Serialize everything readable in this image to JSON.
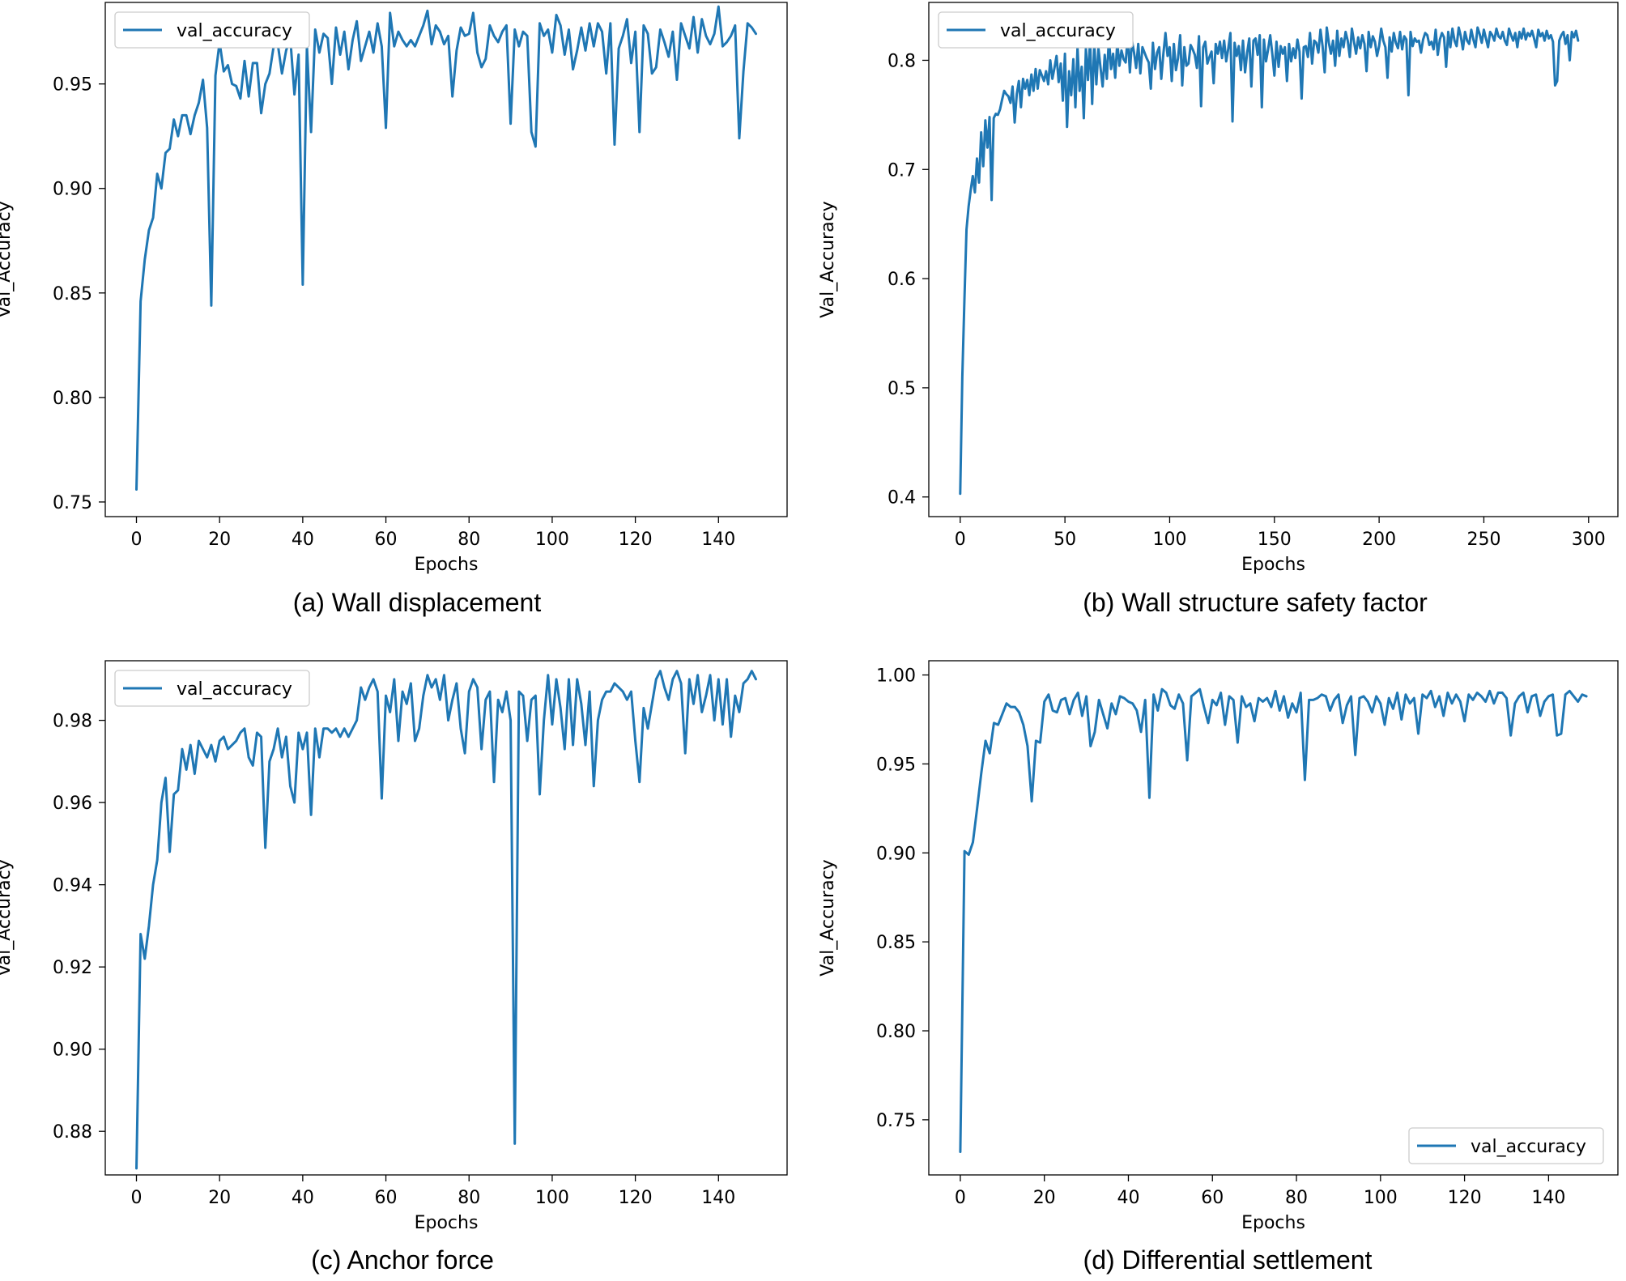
{
  "style": {
    "line_color": "#1f77b4",
    "frame_color": "#000000",
    "background": "#ffffff"
  },
  "chart_data": [
    {
      "type": "line",
      "caption": "(a) Wall displacement",
      "xlabel": "Epochs",
      "ylabel": "Val_Accuracy",
      "xlim": [
        -7.5,
        156.5
      ],
      "ylim": [
        0.743,
        0.989
      ],
      "xticks": [
        0,
        20,
        40,
        60,
        80,
        100,
        120,
        140
      ],
      "yticks": [
        0.75,
        0.8,
        0.85,
        0.9,
        0.95
      ],
      "ytick_labels": [
        "0.75",
        "0.80",
        "0.85",
        "0.90",
        "0.95"
      ],
      "legend_loc": "upper left",
      "series": [
        {
          "name": "val_accuracy",
          "x_start": 0,
          "values": [
            0.756,
            0.846,
            0.866,
            0.88,
            0.886,
            0.907,
            0.9,
            0.917,
            0.919,
            0.933,
            0.925,
            0.935,
            0.935,
            0.926,
            0.935,
            0.941,
            0.952,
            0.929,
            0.844,
            0.954,
            0.97,
            0.956,
            0.959,
            0.95,
            0.949,
            0.943,
            0.961,
            0.944,
            0.96,
            0.96,
            0.936,
            0.95,
            0.955,
            0.968,
            0.969,
            0.955,
            0.966,
            0.972,
            0.945,
            0.964,
            0.854,
            0.968,
            0.927,
            0.976,
            0.965,
            0.974,
            0.972,
            0.95,
            0.977,
            0.964,
            0.975,
            0.957,
            0.971,
            0.98,
            0.961,
            0.968,
            0.975,
            0.965,
            0.979,
            0.968,
            0.929,
            0.984,
            0.968,
            0.975,
            0.971,
            0.968,
            0.971,
            0.968,
            0.973,
            0.978,
            0.985,
            0.969,
            0.978,
            0.975,
            0.969,
            0.973,
            0.944,
            0.966,
            0.977,
            0.973,
            0.974,
            0.984,
            0.965,
            0.958,
            0.962,
            0.978,
            0.973,
            0.97,
            0.975,
            0.978,
            0.931,
            0.976,
            0.968,
            0.975,
            0.973,
            0.927,
            0.92,
            0.979,
            0.973,
            0.976,
            0.965,
            0.983,
            0.978,
            0.964,
            0.976,
            0.957,
            0.966,
            0.977,
            0.966,
            0.979,
            0.968,
            0.979,
            0.975,
            0.955,
            0.979,
            0.921,
            0.967,
            0.973,
            0.981,
            0.96,
            0.975,
            0.927,
            0.978,
            0.974,
            0.955,
            0.958,
            0.976,
            0.97,
            0.963,
            0.975,
            0.952,
            0.979,
            0.973,
            0.967,
            0.982,
            0.965,
            0.981,
            0.973,
            0.969,
            0.974,
            0.987,
            0.968,
            0.97,
            0.973,
            0.978,
            0.924,
            0.956,
            0.979,
            0.977,
            0.974
          ]
        }
      ]
    },
    {
      "type": "line",
      "caption": "(b) Wall structure safety factor",
      "xlabel": "Epochs",
      "ylabel": "Val_Accuracy",
      "xlim": [
        -15,
        314
      ],
      "ylim": [
        0.382,
        0.853
      ],
      "xticks": [
        0,
        50,
        100,
        150,
        200,
        250,
        300
      ],
      "yticks": [
        0.4,
        0.5,
        0.6,
        0.7,
        0.8
      ],
      "ytick_labels": [
        "0.4",
        "0.5",
        "0.6",
        "0.7",
        "0.8"
      ],
      "legend_loc": "upper left",
      "series": [
        {
          "name": "val_accuracy",
          "x_start": 0,
          "values": [
            0.403,
            0.51,
            0.58,
            0.645,
            0.666,
            0.681,
            0.694,
            0.679,
            0.71,
            0.688,
            0.734,
            0.703,
            0.745,
            0.72,
            0.748,
            0.672,
            0.747,
            0.751,
            0.75,
            0.755,
            0.764,
            0.772,
            0.769,
            0.767,
            0.761,
            0.776,
            0.743,
            0.769,
            0.781,
            0.757,
            0.783,
            0.774,
            0.782,
            0.768,
            0.787,
            0.772,
            0.792,
            0.774,
            0.791,
            0.786,
            0.781,
            0.79,
            0.778,
            0.8,
            0.783,
            0.793,
            0.804,
            0.78,
            0.797,
            0.763,
            0.806,
            0.739,
            0.79,
            0.768,
            0.801,
            0.757,
            0.812,
            0.772,
            0.794,
            0.747,
            0.811,
            0.782,
            0.818,
            0.76,
            0.816,
            0.778,
            0.811,
            0.793,
            0.776,
            0.805,
            0.783,
            0.821,
            0.792,
            0.806,
            0.784,
            0.817,
            0.795,
            0.809,
            0.801,
            0.798,
            0.823,
            0.789,
            0.818,
            0.807,
            0.793,
            0.815,
            0.788,
            0.812,
            0.807,
            0.802,
            0.798,
            0.774,
            0.816,
            0.792,
            0.807,
            0.812,
            0.783,
            0.806,
            0.825,
            0.804,
            0.812,
            0.781,
            0.815,
            0.791,
            0.802,
            0.823,
            0.777,
            0.812,
            0.795,
            0.797,
            0.814,
            0.81,
            0.805,
            0.793,
            0.822,
            0.758,
            0.812,
            0.817,
            0.797,
            0.803,
            0.808,
            0.779,
            0.815,
            0.806,
            0.817,
            0.802,
            0.818,
            0.799,
            0.811,
            0.825,
            0.744,
            0.816,
            0.804,
            0.813,
            0.791,
            0.818,
            0.789,
            0.807,
            0.82,
            0.776,
            0.818,
            0.82,
            0.805,
            0.823,
            0.757,
            0.819,
            0.799,
            0.81,
            0.823,
            0.806,
            0.786,
            0.817,
            0.794,
            0.813,
            0.806,
            0.812,
            0.781,
            0.815,
            0.799,
            0.811,
            0.802,
            0.819,
            0.808,
            0.765,
            0.812,
            0.813,
            0.803,
            0.825,
            0.797,
            0.818,
            0.816,
            0.807,
            0.828,
            0.813,
            0.789,
            0.83,
            0.816,
            0.806,
            0.818,
            0.795,
            0.827,
            0.804,
            0.82,
            0.812,
            0.826,
            0.818,
            0.803,
            0.829,
            0.817,
            0.806,
            0.821,
            0.811,
            0.823,
            0.815,
            0.79,
            0.826,
            0.812,
            0.822,
            0.817,
            0.804,
            0.813,
            0.829,
            0.818,
            0.812,
            0.784,
            0.821,
            0.808,
            0.825,
            0.816,
            0.811,
            0.826,
            0.81,
            0.822,
            0.819,
            0.768,
            0.826,
            0.813,
            0.82,
            0.817,
            0.818,
            0.807,
            0.819,
            0.825,
            0.823,
            0.814,
            0.817,
            0.81,
            0.828,
            0.805,
            0.819,
            0.825,
            0.821,
            0.794,
            0.826,
            0.812,
            0.829,
            0.818,
            0.813,
            0.83,
            0.822,
            0.81,
            0.826,
            0.818,
            0.815,
            0.828,
            0.819,
            0.812,
            0.83,
            0.824,
            0.816,
            0.828,
            0.82,
            0.812,
            0.826,
            0.823,
            0.818,
            0.829,
            0.822,
            0.82,
            0.826,
            0.818,
            0.814,
            0.829,
            0.823,
            0.818,
            0.825,
            0.812,
            0.826,
            0.82,
            0.829,
            0.819,
            0.825,
            0.822,
            0.827,
            0.82,
            0.812,
            0.828,
            0.822,
            0.825,
            0.818,
            0.827,
            0.82,
            0.823,
            0.817,
            0.777,
            0.781,
            0.818,
            0.823,
            0.826,
            0.815,
            0.823,
            0.8,
            0.826,
            0.821,
            0.827,
            0.818
          ]
        }
      ]
    },
    {
      "type": "line",
      "caption": "(c) Anchor force",
      "xlabel": "Epochs",
      "ylabel": "Val_Accuracy",
      "xlim": [
        -7.5,
        156.5
      ],
      "ylim": [
        0.8694,
        0.9945
      ],
      "xticks": [
        0,
        20,
        40,
        60,
        80,
        100,
        120,
        140
      ],
      "yticks": [
        0.88,
        0.9,
        0.92,
        0.94,
        0.96,
        0.98
      ],
      "ytick_labels": [
        "0.88",
        "0.90",
        "0.92",
        "0.94",
        "0.96",
        "0.98"
      ],
      "legend_loc": "upper left",
      "series": [
        {
          "name": "val_accuracy",
          "x_start": 0,
          "values": [
            0.871,
            0.928,
            0.922,
            0.93,
            0.94,
            0.946,
            0.96,
            0.966,
            0.948,
            0.962,
            0.963,
            0.973,
            0.968,
            0.974,
            0.967,
            0.975,
            0.973,
            0.971,
            0.974,
            0.97,
            0.975,
            0.976,
            0.973,
            0.974,
            0.975,
            0.977,
            0.978,
            0.971,
            0.969,
            0.977,
            0.976,
            0.949,
            0.97,
            0.973,
            0.978,
            0.971,
            0.976,
            0.964,
            0.96,
            0.977,
            0.973,
            0.977,
            0.957,
            0.978,
            0.971,
            0.978,
            0.978,
            0.977,
            0.978,
            0.976,
            0.978,
            0.976,
            0.978,
            0.98,
            0.988,
            0.985,
            0.988,
            0.99,
            0.987,
            0.961,
            0.986,
            0.982,
            0.99,
            0.975,
            0.987,
            0.984,
            0.989,
            0.975,
            0.978,
            0.986,
            0.991,
            0.988,
            0.99,
            0.985,
            0.991,
            0.98,
            0.985,
            0.989,
            0.978,
            0.972,
            0.987,
            0.99,
            0.988,
            0.973,
            0.985,
            0.987,
            0.965,
            0.985,
            0.982,
            0.987,
            0.98,
            0.877,
            0.987,
            0.986,
            0.975,
            0.985,
            0.986,
            0.962,
            0.98,
            0.991,
            0.979,
            0.99,
            0.983,
            0.973,
            0.99,
            0.974,
            0.99,
            0.984,
            0.974,
            0.987,
            0.964,
            0.98,
            0.985,
            0.987,
            0.987,
            0.989,
            0.988,
            0.987,
            0.985,
            0.987,
            0.975,
            0.965,
            0.983,
            0.978,
            0.984,
            0.99,
            0.992,
            0.988,
            0.985,
            0.99,
            0.992,
            0.989,
            0.972,
            0.99,
            0.984,
            0.991,
            0.982,
            0.986,
            0.991,
            0.98,
            0.99,
            0.979,
            0.99,
            0.976,
            0.986,
            0.982,
            0.989,
            0.99,
            0.992,
            0.99
          ]
        }
      ]
    },
    {
      "type": "line",
      "caption": "(d) Differential settlement",
      "xlabel": "Epochs",
      "ylabel": "Val_Accuracy",
      "xlim": [
        -7.5,
        156.5
      ],
      "ylim": [
        0.719,
        1.008
      ],
      "xticks": [
        0,
        20,
        40,
        60,
        80,
        100,
        120,
        140
      ],
      "yticks": [
        0.75,
        0.8,
        0.85,
        0.9,
        0.95,
        1.0
      ],
      "ytick_labels": [
        "0.75",
        "0.80",
        "0.85",
        "0.90",
        "0.95",
        "1.00"
      ],
      "legend_loc": "lower right",
      "series": [
        {
          "name": "val_accuracy",
          "x_start": 0,
          "values": [
            0.732,
            0.901,
            0.899,
            0.906,
            0.925,
            0.945,
            0.963,
            0.956,
            0.973,
            0.972,
            0.978,
            0.984,
            0.982,
            0.982,
            0.979,
            0.972,
            0.96,
            0.929,
            0.963,
            0.962,
            0.985,
            0.989,
            0.98,
            0.979,
            0.986,
            0.987,
            0.978,
            0.986,
            0.99,
            0.977,
            0.988,
            0.96,
            0.968,
            0.986,
            0.978,
            0.97,
            0.984,
            0.978,
            0.988,
            0.987,
            0.985,
            0.984,
            0.98,
            0.968,
            0.986,
            0.931,
            0.989,
            0.98,
            0.992,
            0.99,
            0.983,
            0.981,
            0.989,
            0.984,
            0.952,
            0.988,
            0.99,
            0.992,
            0.982,
            0.973,
            0.986,
            0.983,
            0.99,
            0.972,
            0.988,
            0.986,
            0.962,
            0.988,
            0.982,
            0.984,
            0.974,
            0.987,
            0.985,
            0.987,
            0.982,
            0.991,
            0.98,
            0.988,
            0.976,
            0.984,
            0.979,
            0.99,
            0.941,
            0.986,
            0.986,
            0.987,
            0.989,
            0.988,
            0.98,
            0.986,
            0.989,
            0.973,
            0.983,
            0.988,
            0.955,
            0.987,
            0.988,
            0.985,
            0.979,
            0.988,
            0.984,
            0.972,
            0.987,
            0.981,
            0.99,
            0.975,
            0.989,
            0.984,
            0.987,
            0.967,
            0.989,
            0.987,
            0.991,
            0.982,
            0.988,
            0.977,
            0.99,
            0.984,
            0.989,
            0.985,
            0.974,
            0.989,
            0.986,
            0.99,
            0.988,
            0.985,
            0.991,
            0.984,
            0.99,
            0.99,
            0.987,
            0.966,
            0.984,
            0.988,
            0.99,
            0.979,
            0.988,
            0.989,
            0.977,
            0.985,
            0.988,
            0.989,
            0.966,
            0.967,
            0.989,
            0.991,
            0.988,
            0.985,
            0.989,
            0.988
          ]
        }
      ]
    }
  ]
}
